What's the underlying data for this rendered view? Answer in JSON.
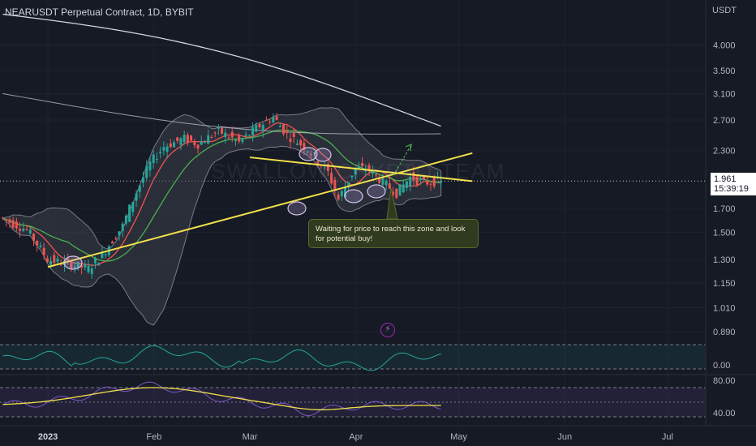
{
  "header": {
    "title": "NEARUSDT Perpetual Contract, 1D, BYBIT",
    "currency": "USDT"
  },
  "watermark": "SWALLOW CRYPTO TEAM",
  "note": {
    "text": "Waiting for price to reach this zone and look for potential buy!"
  },
  "price_tag": {
    "price": "1.961",
    "countdown": "15:39:19"
  },
  "colors": {
    "background": "#161a25",
    "candle_up": "#26a69a",
    "candle_down": "#ef5350",
    "trendline": "#f2e04a",
    "ma_fast": "#ef5350",
    "ma_mid": "#4caf50",
    "ma_slow": "#d1d4dc",
    "band_fill": "#3b3f4a",
    "indicator1": "#26a69a",
    "indicator2_line": "#7e57c2",
    "indicator2_signal": "#f2e04a",
    "arrow": "#4caf50"
  },
  "chart_data": [
    {
      "type": "line",
      "scale": "log",
      "y_ticks": [
        "4.000",
        "3.500",
        "3.100",
        "2.700",
        "2.300",
        "1.700",
        "1.500",
        "1.300",
        "1.150",
        "1.010",
        "0.890"
      ],
      "x_ticks": [
        "2023",
        "Feb",
        "Mar",
        "Apr",
        "May",
        "Jun",
        "Jul"
      ],
      "ohlc_summary": {
        "start_price": 1.58,
        "low_price": 1.24,
        "high_price": 2.74,
        "last_price": 1.961
      },
      "trendlines": [
        {
          "name": "support",
          "from": [
            "2023-01-01",
            1.25
          ],
          "to": [
            "2023-05-05",
            2.27
          ]
        },
        {
          "name": "resistance",
          "from": [
            "2023-03-01",
            2.22
          ],
          "to": [
            "2023-05-05",
            1.96
          ]
        }
      ]
    },
    {
      "type": "line",
      "y_ticks": [
        "0.00"
      ]
    },
    {
      "type": "line",
      "y_ticks": [
        "80.00",
        "40.00"
      ]
    }
  ]
}
